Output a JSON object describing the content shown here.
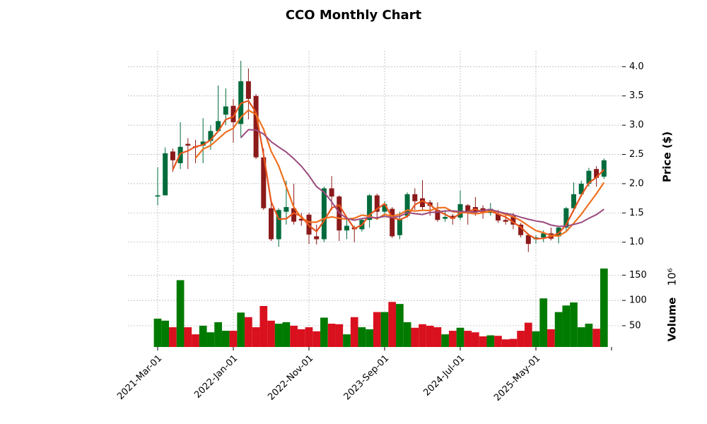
{
  "chart_data": {
    "type": "candlestick",
    "title": "CCO Monthly Chart",
    "ylabel": "Price ($)",
    "volume_label": "Volume",
    "volume_offset": "10⁶",
    "categories": [
      "2021-Mar-01",
      null,
      null,
      null,
      null,
      null,
      null,
      null,
      null,
      null,
      "2022-Jan-01",
      null,
      null,
      null,
      null,
      null,
      null,
      null,
      null,
      null,
      "2022-Nov-01",
      null,
      null,
      null,
      null,
      null,
      null,
      null,
      null,
      null,
      "2023-Sep-01",
      null,
      null,
      null,
      null,
      null,
      null,
      null,
      null,
      null,
      "2024-Jul-01",
      null,
      null,
      null,
      null,
      null,
      null,
      null,
      null,
      null,
      "2025-May-01",
      null,
      null,
      null,
      null,
      null,
      null,
      null,
      null,
      null
    ],
    "open": [
      1.78,
      1.8,
      2.55,
      2.35,
      2.68,
      2.64,
      2.65,
      2.73,
      2.9,
      3.18,
      3.33,
      3.02,
      3.75,
      3.5,
      2.45,
      1.58,
      1.05,
      1.52,
      1.58,
      1.4,
      1.47,
      1.1,
      1.05,
      1.92,
      1.78,
      1.2,
      1.25,
      1.22,
      1.38,
      1.8,
      1.52,
      1.57,
      1.12,
      1.45,
      1.82,
      1.75,
      1.68,
      1.55,
      1.4,
      1.45,
      1.42,
      1.63,
      1.6,
      1.58,
      1.5,
      1.48,
      1.38,
      1.45,
      1.3,
      1.12,
      1.05,
      1.08,
      1.15,
      1.1,
      1.25,
      1.58,
      1.82,
      2.0,
      2.25,
      2.12
    ],
    "high": [
      2.28,
      2.62,
      2.6,
      3.05,
      2.78,
      2.75,
      3.12,
      3.0,
      3.68,
      3.63,
      3.45,
      4.1,
      3.97,
      3.53,
      2.6,
      1.7,
      1.58,
      2.05,
      2.0,
      1.5,
      1.5,
      1.3,
      1.95,
      2.13,
      1.8,
      1.4,
      1.28,
      1.4,
      1.82,
      1.83,
      1.7,
      1.6,
      1.52,
      1.85,
      1.92,
      2.06,
      1.72,
      1.68,
      1.55,
      1.48,
      1.88,
      1.65,
      1.77,
      1.63,
      1.67,
      1.55,
      1.5,
      1.5,
      1.33,
      1.15,
      1.12,
      1.2,
      1.25,
      1.28,
      1.6,
      2.02,
      2.05,
      2.27,
      2.3,
      2.43
    ],
    "low": [
      1.63,
      1.8,
      2.2,
      2.25,
      2.25,
      2.35,
      2.35,
      2.58,
      2.88,
      3.0,
      2.7,
      2.78,
      3.1,
      2.42,
      1.55,
      1.02,
      0.92,
      1.3,
      1.3,
      1.28,
      0.97,
      0.96,
      1.0,
      1.55,
      1.02,
      1.05,
      1.0,
      1.18,
      1.25,
      1.38,
      1.45,
      1.07,
      1.05,
      1.42,
      1.55,
      1.55,
      1.45,
      1.35,
      1.35,
      1.3,
      1.38,
      1.3,
      1.45,
      1.4,
      1.45,
      1.33,
      1.3,
      1.22,
      1.08,
      0.83,
      0.98,
      1.0,
      1.03,
      0.98,
      1.18,
      1.52,
      1.78,
      1.95,
      1.95,
      2.08
    ],
    "close": [
      1.8,
      2.52,
      2.4,
      2.63,
      2.65,
      2.62,
      2.72,
      2.9,
      3.07,
      3.32,
      3.05,
      3.75,
      3.45,
      2.45,
      1.58,
      1.05,
      1.55,
      1.6,
      1.35,
      1.37,
      1.13,
      1.05,
      1.92,
      1.78,
      1.2,
      1.28,
      1.22,
      1.38,
      1.8,
      1.52,
      1.65,
      1.1,
      1.4,
      1.82,
      1.7,
      1.6,
      1.62,
      1.38,
      1.43,
      1.4,
      1.65,
      1.52,
      1.52,
      1.5,
      1.57,
      1.37,
      1.35,
      1.3,
      1.12,
      0.97,
      1.08,
      1.15,
      1.06,
      1.25,
      1.58,
      1.82,
      2.0,
      2.22,
      2.1,
      2.4
    ],
    "volume": [
      64,
      60,
      47,
      140,
      47,
      33,
      50,
      37,
      57,
      40,
      40,
      76,
      67,
      47,
      89,
      60,
      54,
      57,
      50,
      43,
      47,
      39,
      66,
      54,
      53,
      33,
      67,
      47,
      43,
      77,
      77,
      97,
      93,
      57,
      46,
      53,
      50,
      47,
      33,
      40,
      46,
      40,
      37,
      29,
      31,
      30,
      23,
      24,
      40,
      56,
      39,
      104,
      43,
      77,
      90,
      96,
      47,
      54,
      44,
      163
    ],
    "up_color": "#006b3c",
    "down_color": "#8b1a1a",
    "volume_up_color": "#007a00",
    "volume_down_color": "#d9101e",
    "moving_averages": [
      {
        "window": 3,
        "color": "#e8541c"
      },
      {
        "window": 6,
        "color": "#f0701e"
      },
      {
        "window": 12,
        "color": "#9b4a7e"
      }
    ],
    "ylim": [
      0.67,
      4.27
    ],
    "yticks": [
      {
        "value": 1,
        "label": "1.0"
      },
      1.5,
      {
        "value": 2,
        "label": "2.0"
      },
      2.5,
      {
        "value": 3,
        "label": "3.0"
      },
      3.5,
      {
        "value": 4,
        "label": "4.0"
      }
    ],
    "volume_ylim": [
      8,
      170
    ],
    "volume_ticks": [
      50,
      100,
      150
    ],
    "grid": true
  }
}
